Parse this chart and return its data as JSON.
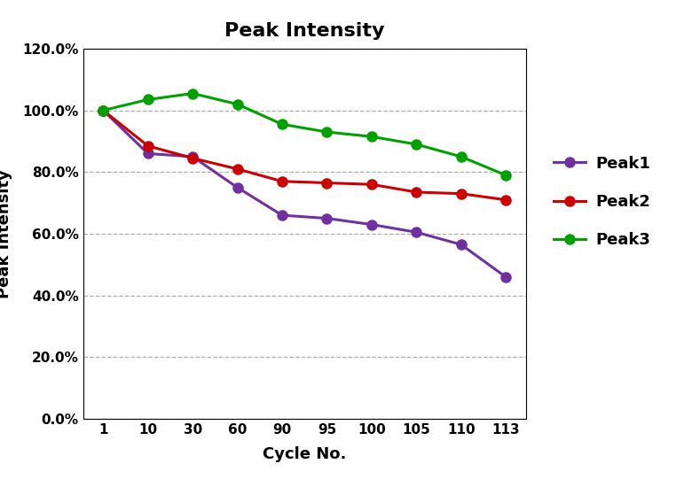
{
  "title": "Peak Intensity",
  "xlabel": "Cycle No.",
  "ylabel": "Peak Intensity",
  "x_labels": [
    "1",
    "10",
    "30",
    "60",
    "90",
    "95",
    "100",
    "105",
    "110",
    "113"
  ],
  "x_values": [
    0,
    1,
    2,
    3,
    4,
    5,
    6,
    7,
    8,
    9
  ],
  "peak1": [
    1.0,
    0.86,
    0.85,
    0.75,
    0.66,
    0.65,
    0.63,
    0.605,
    0.565,
    0.46
  ],
  "peak2": [
    1.0,
    0.885,
    0.845,
    0.81,
    0.77,
    0.765,
    0.76,
    0.735,
    0.73,
    0.71
  ],
  "peak3": [
    1.0,
    1.035,
    1.055,
    1.02,
    0.955,
    0.93,
    0.915,
    0.89,
    0.85,
    0.79
  ],
  "color_peak1": "#7030A0",
  "color_peak2": "#CC0000",
  "color_peak3": "#00A000",
  "ylim_min": 0.0,
  "ylim_max": 1.2,
  "yticks": [
    0.0,
    0.2,
    0.4,
    0.6,
    0.8,
    1.0,
    1.2
  ],
  "marker": "o",
  "linewidth": 2.2,
  "markersize": 8,
  "title_fontsize": 16,
  "label_fontsize": 13,
  "tick_fontsize": 11,
  "legend_fontsize": 13
}
